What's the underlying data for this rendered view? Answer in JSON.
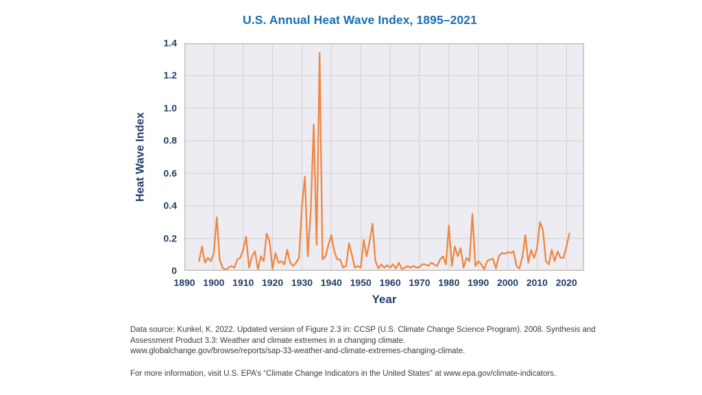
{
  "title": "U.S. Annual Heat Wave Index, 1895–2021",
  "colors": {
    "title_blue": "#1b6cb0",
    "axis_navy": "#223e68",
    "line": "#ef8640",
    "plot_bg": "#edecf2",
    "grid": "#d8d7d3",
    "plot_border": "#c2c1bc",
    "footer_text": "#3a3a3a"
  },
  "chart_data": {
    "type": "line",
    "title": "U.S. Annual Heat Wave Index, 1895–2021",
    "xlabel": "Year",
    "ylabel": "Heat Wave Index",
    "xlim": [
      1890,
      2026
    ],
    "ylim": [
      0,
      1.4
    ],
    "grid": true,
    "legend": "none",
    "x_ticks": [
      1890,
      1900,
      1910,
      1920,
      1930,
      1940,
      1950,
      1960,
      1970,
      1980,
      1990,
      2000,
      2010,
      2020
    ],
    "y_grid": [
      0.2,
      0.4,
      0.6,
      0.8,
      1.0,
      1.2
    ],
    "y_ticks": [
      {
        "value": 1.4,
        "label": "1.4"
      },
      {
        "value": 1.2,
        "label": "1.2"
      },
      {
        "value": 1.0,
        "label": "1.0"
      },
      {
        "value": 0.8,
        "label": "0.8"
      },
      {
        "value": 0.6,
        "label": "0.6"
      },
      {
        "value": 0.4,
        "label": "0.4"
      },
      {
        "value": 0.2,
        "label": "0.2"
      },
      {
        "value": 0,
        "label": "0"
      }
    ],
    "series": [
      {
        "name": "Heat Wave Index",
        "x": [
          1895,
          1896,
          1897,
          1898,
          1899,
          1900,
          1901,
          1902,
          1903,
          1904,
          1905,
          1906,
          1907,
          1908,
          1909,
          1910,
          1911,
          1912,
          1913,
          1914,
          1915,
          1916,
          1917,
          1918,
          1919,
          1920,
          1921,
          1922,
          1923,
          1924,
          1925,
          1926,
          1927,
          1928,
          1929,
          1930,
          1931,
          1932,
          1933,
          1934,
          1935,
          1936,
          1937,
          1938,
          1939,
          1940,
          1941,
          1942,
          1943,
          1944,
          1945,
          1946,
          1947,
          1948,
          1949,
          1950,
          1951,
          1952,
          1953,
          1954,
          1955,
          1956,
          1957,
          1958,
          1959,
          1960,
          1961,
          1962,
          1963,
          1964,
          1965,
          1966,
          1967,
          1968,
          1969,
          1970,
          1971,
          1972,
          1973,
          1974,
          1975,
          1976,
          1977,
          1978,
          1979,
          1980,
          1981,
          1982,
          1983,
          1984,
          1985,
          1986,
          1987,
          1988,
          1989,
          1990,
          1991,
          1992,
          1993,
          1994,
          1995,
          1996,
          1997,
          1998,
          1999,
          2000,
          2001,
          2002,
          2003,
          2004,
          2005,
          2006,
          2007,
          2008,
          2009,
          2010,
          2011,
          2012,
          2013,
          2014,
          2015,
          2016,
          2017,
          2018,
          2019,
          2020,
          2021
        ],
        "values": [
          0.06,
          0.15,
          0.05,
          0.08,
          0.06,
          0.11,
          0.33,
          0.07,
          0.02,
          0.005,
          0.02,
          0.03,
          0.02,
          0.07,
          0.08,
          0.13,
          0.21,
          0.02,
          0.09,
          0.12,
          0.01,
          0.09,
          0.06,
          0.23,
          0.18,
          0.01,
          0.11,
          0.05,
          0.06,
          0.04,
          0.13,
          0.05,
          0.03,
          0.05,
          0.08,
          0.4,
          0.58,
          0.09,
          0.37,
          0.9,
          0.16,
          1.34,
          0.07,
          0.09,
          0.16,
          0.22,
          0.12,
          0.07,
          0.07,
          0.02,
          0.03,
          0.17,
          0.1,
          0.02,
          0.03,
          0.02,
          0.19,
          0.09,
          0.18,
          0.29,
          0.06,
          0.015,
          0.04,
          0.02,
          0.035,
          0.02,
          0.04,
          0.015,
          0.05,
          0.01,
          0.02,
          0.03,
          0.02,
          0.03,
          0.02,
          0.025,
          0.04,
          0.04,
          0.03,
          0.05,
          0.04,
          0.03,
          0.07,
          0.09,
          0.04,
          0.28,
          0.03,
          0.15,
          0.09,
          0.14,
          0.02,
          0.08,
          0.06,
          0.35,
          0.03,
          0.06,
          0.04,
          0.01,
          0.06,
          0.07,
          0.075,
          0.015,
          0.09,
          0.11,
          0.105,
          0.115,
          0.11,
          0.12,
          0.03,
          0.015,
          0.085,
          0.22,
          0.05,
          0.13,
          0.08,
          0.14,
          0.3,
          0.25,
          0.06,
          0.04,
          0.13,
          0.06,
          0.12,
          0.08,
          0.08,
          0.15,
          0.23
        ]
      }
    ]
  },
  "footer": {
    "source_line1": "Data source: Kunkel, K. 2022. Updated version of Figure 2.3 in: CCSP (U.S. Climate Change Science Program). 2008. Synthesis and",
    "source_line2": "Assessment Product 3.3: Weather and climate extremes in a changing climate.",
    "source_line3": "www.globalchange.gov/browse/reports/sap-33-weather-and-climate-extremes-changing-climate.",
    "more_info": "For more information, visit U.S. EPA’s “Climate Change Indicators in the United States” at www.epa.gov/climate-indicators."
  }
}
